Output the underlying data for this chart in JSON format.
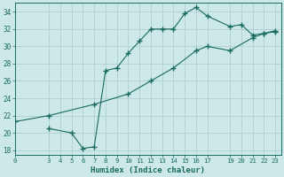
{
  "xlabel": "Humidex (Indice chaleur)",
  "bg_color": "#cce8e8",
  "grid_color": "#b0d0d0",
  "line_color": "#1a6b60",
  "xlim": [
    0,
    23.5
  ],
  "ylim": [
    17.5,
    35.0
  ],
  "xticks": [
    0,
    3,
    4,
    5,
    6,
    7,
    8,
    9,
    10,
    11,
    12,
    13,
    14,
    15,
    16,
    17,
    19,
    20,
    21,
    22,
    23
  ],
  "yticks": [
    18,
    20,
    22,
    24,
    26,
    28,
    30,
    32,
    34
  ],
  "line1_x": [
    3,
    5,
    6,
    7,
    8,
    9,
    10,
    11,
    12,
    13,
    14,
    15,
    16,
    17,
    19,
    20,
    21,
    22,
    23
  ],
  "line1_y": [
    20.5,
    20.0,
    18.2,
    18.4,
    27.2,
    27.5,
    29.2,
    30.6,
    32.0,
    32.0,
    32.0,
    33.8,
    34.5,
    33.5,
    32.3,
    32.5,
    31.3,
    31.5,
    31.7
  ],
  "line2_x": [
    0,
    3,
    7,
    10,
    12,
    14,
    16,
    17,
    19,
    21,
    22,
    23
  ],
  "line2_y": [
    21.3,
    22.0,
    23.3,
    24.5,
    26.0,
    27.5,
    29.5,
    30.0,
    29.5,
    31.0,
    31.5,
    31.8
  ]
}
